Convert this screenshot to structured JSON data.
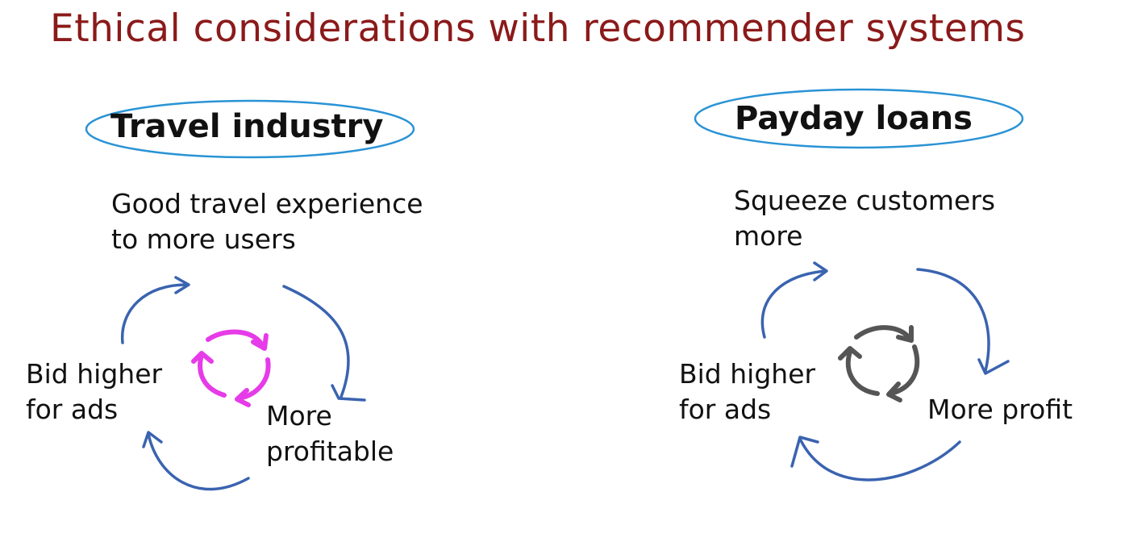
{
  "title": "Ethical considerations with recommender systems",
  "colors": {
    "title": "#8b1a1a",
    "ellipse": "#2a93d5",
    "cycle_arrow": "#3a63b0",
    "travel_icon": "#e63be8",
    "payday_icon": "#555555"
  },
  "travel": {
    "heading": "Travel industry",
    "top_line1": "Good travel experience",
    "top_line2": "to more users",
    "left_line1": "Bid higher",
    "left_line2": "for ads",
    "right_line1": "More",
    "right_line2": "profitable",
    "icon": "refresh-cycle-icon"
  },
  "payday": {
    "heading": "Payday loans",
    "top_line1": "Squeeze customers",
    "top_line2": "more",
    "left_line1": "Bid higher",
    "left_line2": "for ads",
    "right_line1": "More profit",
    "icon": "refresh-cycle-icon"
  }
}
